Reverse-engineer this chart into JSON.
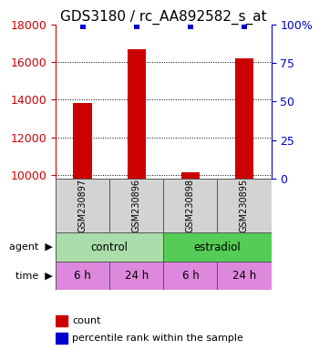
{
  "title": "GDS3180 / rc_AA892582_s_at",
  "samples": [
    "GSM230897",
    "GSM230896",
    "GSM230898",
    "GSM230895"
  ],
  "counts": [
    13800,
    16700,
    10150,
    16200
  ],
  "percentile_ranks": [
    99,
    99,
    99,
    99
  ],
  "ylim_left": [
    9800,
    18000
  ],
  "ylim_right": [
    0,
    100
  ],
  "yticks_left": [
    10000,
    12000,
    14000,
    16000,
    18000
  ],
  "yticks_right": [
    0,
    25,
    50,
    75,
    100
  ],
  "bar_color": "#cc0000",
  "dot_color": "#0000cc",
  "bar_width": 0.35,
  "agent_labels": [
    "control",
    "estradiol"
  ],
  "agent_colors": [
    "#aaddaa",
    "#55cc55"
  ],
  "time_labels": [
    "6 h",
    "24 h",
    "6 h",
    "24 h"
  ],
  "time_color": "#dd88dd",
  "grid_color": "#000000",
  "left_axis_color": "#cc0000",
  "right_axis_color": "#0000cc",
  "title_fontsize": 11,
  "tick_fontsize": 9,
  "sample_fontsize": 7,
  "row_fontsize": 8.5
}
